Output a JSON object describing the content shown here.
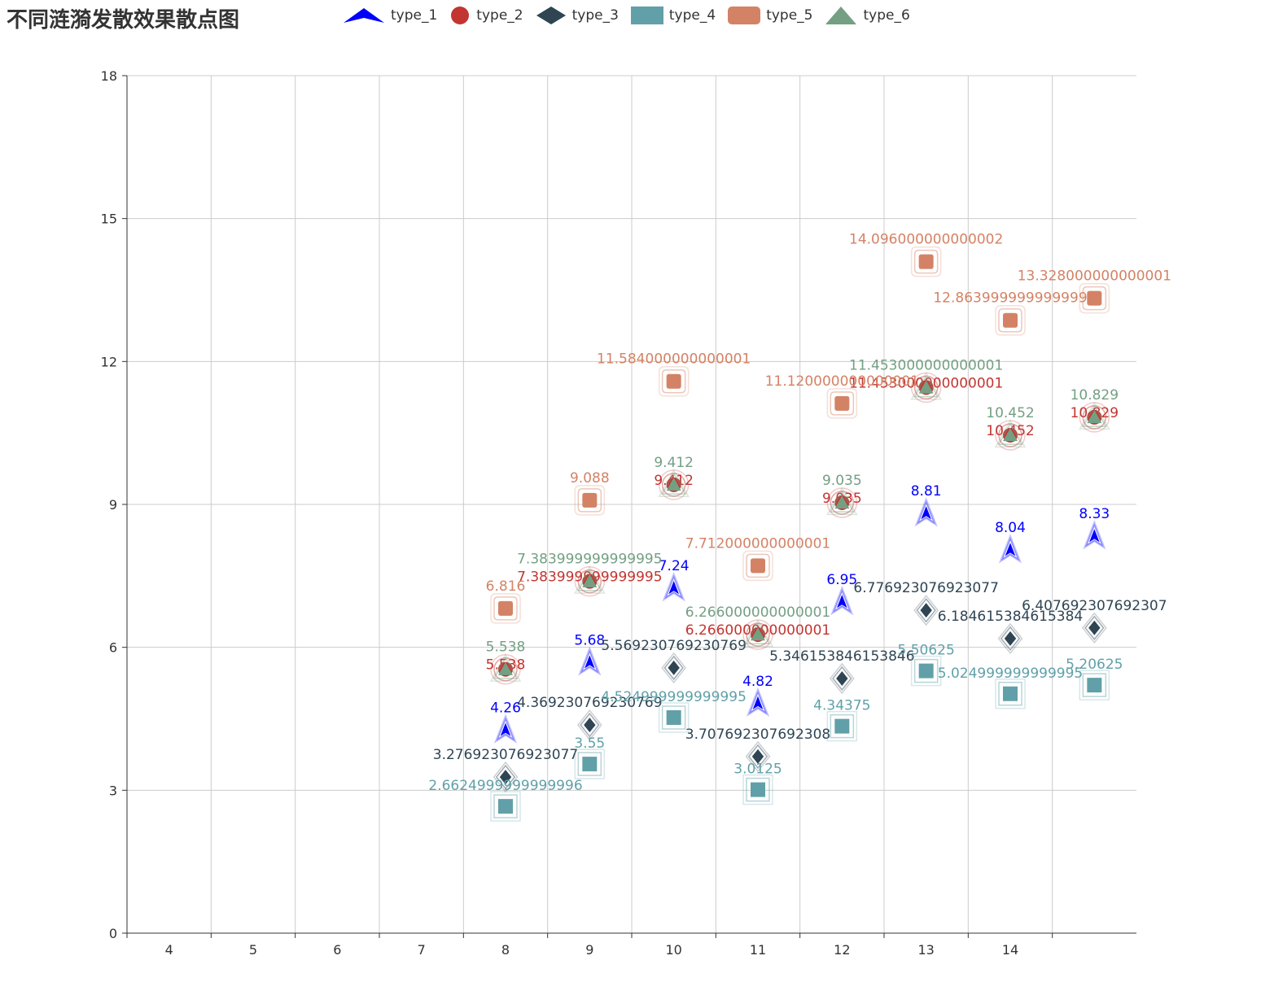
{
  "chart_data": {
    "type": "scatter",
    "title": "不同涟漪发散效果散点图",
    "xlabel": "",
    "ylabel": "",
    "x_categories": [
      "4",
      "5",
      "6",
      "7",
      "8",
      "9",
      "10",
      "11",
      "12",
      "13",
      "14"
    ],
    "xlim": [
      3.5,
      15.5
    ],
    "ylim": [
      0,
      18
    ],
    "y_ticks": [
      0,
      3,
      6,
      9,
      12,
      15,
      18
    ],
    "grid": true,
    "legend_position": "top",
    "series": [
      {
        "name": "type_1",
        "symbol": "arrow",
        "color": "#0000ff",
        "x": [
          8,
          9,
          10,
          11,
          12,
          13,
          14,
          15
        ],
        "y": [
          4.26,
          5.68,
          7.24,
          4.82,
          6.95,
          8.81,
          8.04,
          8.33
        ],
        "labels": [
          "4.26",
          "5.68",
          "7.24",
          "4.82",
          "6.95",
          "8.81",
          "8.04",
          "8.33"
        ]
      },
      {
        "name": "type_2",
        "symbol": "circle",
        "color": "#c23531",
        "x": [
          8,
          9,
          10,
          11,
          12,
          13,
          14,
          15
        ],
        "y": [
          5.538,
          7.384,
          9.412,
          6.266,
          9.035,
          11.453,
          10.452,
          10.829
        ],
        "labels": [
          "5.538",
          "7.383999999999995",
          "9.412",
          "6.266000000000001",
          "9.035",
          "11.453000000000001",
          "10.452",
          "10.829"
        ]
      },
      {
        "name": "type_3",
        "symbol": "diamond",
        "color": "#2f4554",
        "x": [
          8,
          9,
          10,
          11,
          12,
          13,
          14,
          15
        ],
        "y": [
          3.276923076923077,
          4.369230769230769,
          5.569230769230769,
          3.707692307692308,
          5.346153846153846,
          6.776923076923077,
          6.184615384615384,
          6.407692307692307
        ],
        "labels": [
          "3.276923076923077",
          "4.369230769230769",
          "5.569230769230769",
          "3.707692307692308",
          "5.346153846153846",
          "6.776923076923077",
          "6.184615384615384",
          "6.407692307692307"
        ]
      },
      {
        "name": "type_4",
        "symbol": "rect",
        "color": "#61a0a8",
        "x": [
          8,
          9,
          10,
          11,
          12,
          13,
          14,
          15
        ],
        "y": [
          2.6625,
          3.55,
          4.525,
          3.0125,
          4.34375,
          5.50625,
          5.025,
          5.20625
        ],
        "labels": [
          "2.6624999999999996",
          "3.55",
          "4.524999999999995",
          "3.0125",
          "4.34375",
          "5.50625",
          "5.024999999999995",
          "5.20625"
        ]
      },
      {
        "name": "type_5",
        "symbol": "roundRect",
        "color": "#d48265",
        "x": [
          8,
          9,
          10,
          11,
          12,
          13,
          14,
          15
        ],
        "y": [
          6.816,
          9.088,
          11.584,
          7.712,
          11.12,
          14.096,
          12.864,
          13.328
        ],
        "labels": [
          "6.816",
          "9.088",
          "11.584000000000001",
          "7.712000000000001",
          "11.120000000000001",
          "14.096000000000002",
          "12.863999999999999",
          "13.328000000000001"
        ]
      },
      {
        "name": "type_6",
        "symbol": "triangle",
        "color": "#749f83",
        "x": [
          8,
          9,
          10,
          11,
          12,
          13,
          14,
          15
        ],
        "y": [
          5.538,
          7.384,
          9.412,
          6.266,
          9.035,
          11.453,
          10.452,
          10.829
        ],
        "labels": [
          "5.538",
          "7.383999999999995",
          "9.412",
          "6.266000000000001",
          "9.035",
          "11.453000000000001",
          "10.452",
          "10.829"
        ]
      }
    ]
  }
}
